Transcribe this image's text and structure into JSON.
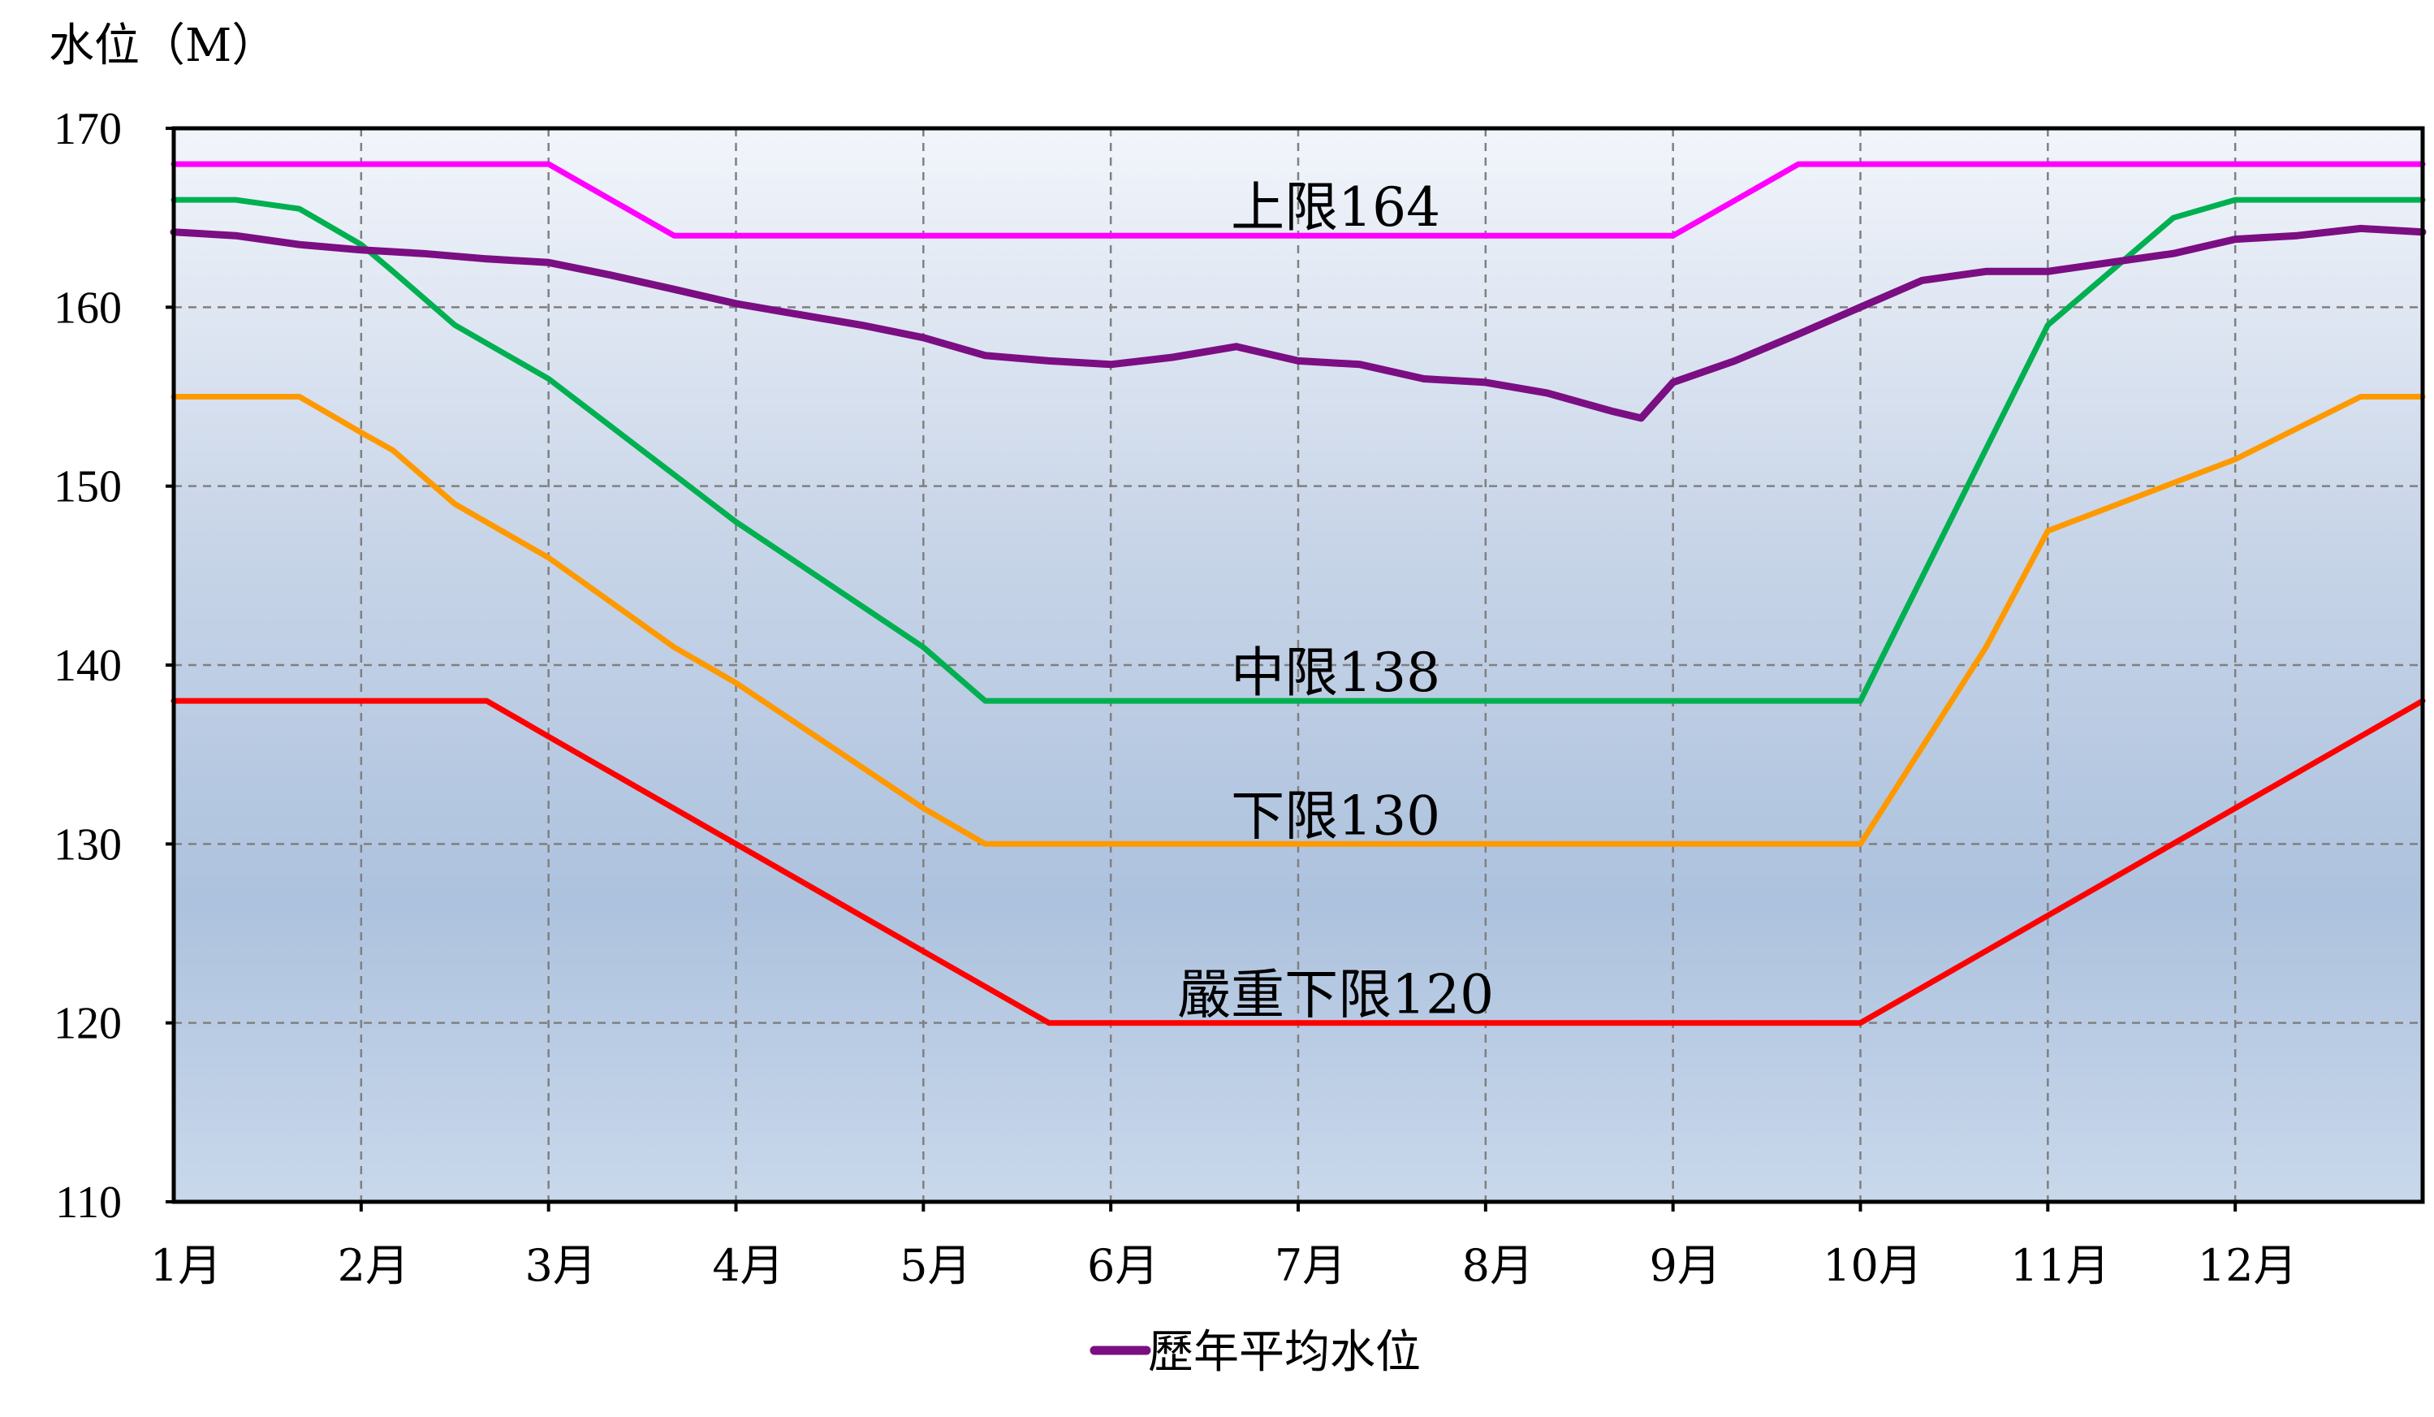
{
  "chart_data": {
    "type": "line",
    "ylabel": "水位（M）",
    "ylim": [
      110,
      170
    ],
    "yticks": [
      "110",
      "120",
      "130",
      "140",
      "150",
      "160",
      "170"
    ],
    "xlim": [
      0,
      12
    ],
    "categories": [
      "1月",
      "2月",
      "3月",
      "4月",
      "5月",
      "6月",
      "7月",
      "8月",
      "9月",
      "10月",
      "11月",
      "12月"
    ],
    "grid": true,
    "legend_position": "bottom",
    "annotations": [
      {
        "text": "上限164",
        "x": 6.2,
        "y": 164
      },
      {
        "text": "中限138",
        "x": 6.2,
        "y": 138
      },
      {
        "text": "下限130",
        "x": 6.2,
        "y": 130
      },
      {
        "text": "嚴重下限120",
        "x": 6.2,
        "y": 120
      }
    ],
    "series": [
      {
        "key": "upper",
        "color": "#ff00ff",
        "x": [
          0,
          2.0,
          2.67,
          8.0,
          8.67,
          12
        ],
        "y": [
          168,
          168,
          164,
          164,
          168,
          168
        ]
      },
      {
        "key": "middle",
        "color": "#00b050",
        "x": [
          0,
          0.33,
          0.67,
          1.0,
          1.17,
          1.5,
          2.0,
          3.0,
          4.0,
          4.33,
          9.0,
          10.0,
          10.67,
          11.0,
          12
        ],
        "y": [
          166,
          166,
          165.5,
          163.5,
          162,
          159,
          156,
          148,
          141,
          138,
          138,
          159,
          165,
          166,
          166
        ]
      },
      {
        "key": "lower",
        "color": "#ff9900",
        "x": [
          0,
          0.67,
          1.0,
          1.17,
          1.5,
          2.0,
          2.67,
          3.0,
          4.0,
          4.33,
          9.0,
          9.67,
          10.0,
          11.0,
          11.67,
          12
        ],
        "y": [
          155,
          155,
          153,
          152,
          149,
          146,
          141,
          139,
          132,
          130,
          130,
          141,
          147.5,
          151.5,
          155,
          155
        ]
      },
      {
        "key": "severe",
        "color": "#ff0000",
        "x": [
          0,
          1.67,
          2.0,
          3.0,
          4.0,
          4.67,
          9.0,
          10.0,
          12
        ],
        "y": [
          138,
          138,
          136,
          130,
          124,
          120,
          120,
          126,
          138
        ]
      },
      {
        "name": "歷年平均水位",
        "key": "avg",
        "color": "#7b0e82",
        "x": [
          0,
          0.33,
          0.67,
          1.0,
          1.33,
          1.67,
          2.0,
          2.33,
          2.67,
          3.0,
          3.33,
          3.67,
          4.0,
          4.33,
          4.67,
          5.0,
          5.33,
          5.67,
          6.0,
          6.33,
          6.67,
          7.0,
          7.33,
          7.67,
          7.83,
          8.0,
          8.33,
          8.67,
          9.0,
          9.33,
          9.67,
          10.0,
          10.33,
          10.67,
          11.0,
          11.33,
          11.67,
          12
        ],
        "y": [
          164.2,
          164,
          163.5,
          163.2,
          163,
          162.7,
          162.5,
          161.8,
          161,
          160.2,
          159.6,
          159,
          158.3,
          157.3,
          157,
          156.8,
          157.2,
          157.8,
          157,
          156.8,
          156,
          155.8,
          155.2,
          154.2,
          153.8,
          155.8,
          157,
          158.5,
          160,
          161.5,
          162,
          162,
          162.5,
          163,
          163.8,
          164,
          164.4,
          164.2
        ]
      }
    ]
  }
}
